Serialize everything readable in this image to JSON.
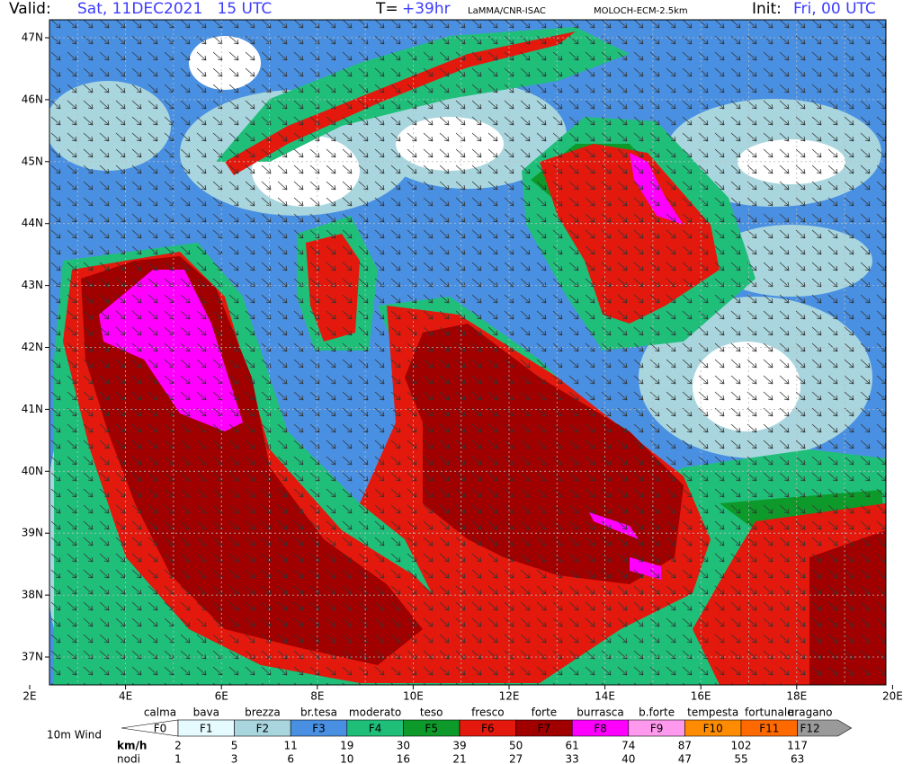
{
  "header": {
    "valid_label": "Valid:",
    "valid_time": "Sat, 11DEC2021   15 UTC",
    "lead_label": "T=",
    "lead": "+39hr",
    "source": "LaMMA/CNR-ISAC",
    "model": "MOLOCH-ECM-2.5km",
    "init_label": "Init:",
    "init_time": "Fri, 00 UTC"
  },
  "map": {
    "lat_labels": [
      "47N",
      "46N",
      "45N",
      "44N",
      "43N",
      "42N",
      "41N",
      "40N",
      "39N",
      "38N",
      "37N"
    ],
    "lon_labels": [
      "2E",
      "4E",
      "6E",
      "8E",
      "10E",
      "12E",
      "14E",
      "16E",
      "18E",
      "20E"
    ]
  },
  "legend": {
    "title": "10m Wind",
    "classes": [
      {
        "name": "calma",
        "code": "F0",
        "color": "#ffffff"
      },
      {
        "name": "bava",
        "code": "F1",
        "color": "#e6fbff"
      },
      {
        "name": "brezza",
        "code": "F2",
        "color": "#a9d6de"
      },
      {
        "name": "br.tesa",
        "code": "F3",
        "color": "#4a90e2"
      },
      {
        "name": "moderato",
        "code": "F4",
        "color": "#1fbf7a"
      },
      {
        "name": "teso",
        "code": "F5",
        "color": "#0e9a2a"
      },
      {
        "name": "fresco",
        "code": "F6",
        "color": "#e2190c"
      },
      {
        "name": "forte",
        "code": "F7",
        "color": "#a00000"
      },
      {
        "name": "burrasca",
        "code": "F8",
        "color": "#ff00ff"
      },
      {
        "name": "b.forte",
        "code": "F9",
        "color": "#ff99ee"
      },
      {
        "name": "tempesta",
        "code": "F10",
        "color": "#ff8c00"
      },
      {
        "name": "fortunale",
        "code": "F11",
        "color": "#ff6a00"
      },
      {
        "name": "uragano",
        "code": "F12",
        "color": "#9a9a9a"
      }
    ],
    "kmh_label": "km/h",
    "kmh": [
      "2",
      "5",
      "11",
      "19",
      "30",
      "39",
      "50",
      "61",
      "74",
      "87",
      "102",
      "117"
    ],
    "knots_label": "nodi",
    "knots": [
      "1",
      "3",
      "6",
      "10",
      "16",
      "21",
      "27",
      "33",
      "40",
      "47",
      "55",
      "63"
    ]
  }
}
